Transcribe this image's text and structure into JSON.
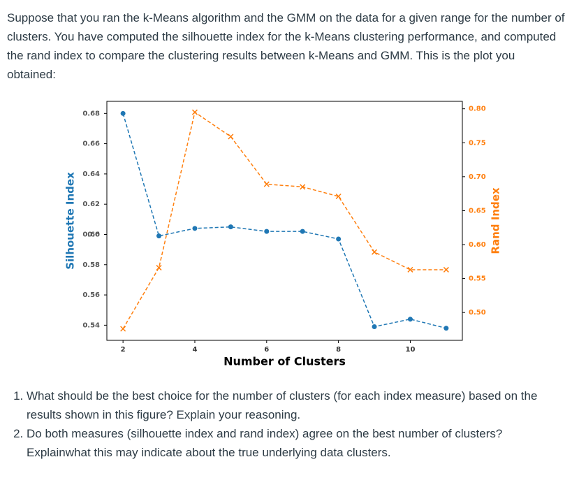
{
  "question": {
    "paragraph": "Suppose that you ran the k-Means algorithm and the GMM on the data for a given range for the number of clusters. You have computed the silhouette index for the k-Means clustering performance, and computed the rand index to compare the clustering results between k-Means and GMM. This is the plot you obtained:",
    "items": [
      "What should be the best choice for the number of clusters (for each index measure) based on the results shown in this figure? Explain your reasoning.",
      "Do both measures (silhouette index and rand index) agree on the best number of clusters? Explainwhat this may indicate about the true underlying data clusters."
    ]
  },
  "chart_data": {
    "type": "line",
    "xlabel": "Number of Clusters",
    "ylabel": "Silhouette Index",
    "y2label": "Rand Index",
    "x": [
      2,
      3,
      4,
      5,
      6,
      7,
      8,
      9,
      10,
      11
    ],
    "xlim": [
      1.55,
      11.45
    ],
    "xticks": [
      2,
      4,
      6,
      8,
      10
    ],
    "ylim": [
      0.53,
      0.688
    ],
    "yticks": [
      0.54,
      0.56,
      0.58,
      0.6,
      {
        "value": 0.6,
        "label": "0.60"
      },
      0.62,
      0.64,
      0.66,
      0.68
    ],
    "y2lim": [
      0.459,
      0.811
    ],
    "y2ticks": [
      {
        "value": 0.5,
        "label": "0.50"
      },
      0.55,
      {
        "value": 0.6,
        "label": "0.60"
      },
      0.65,
      {
        "value": 0.7,
        "label": "0.70"
      },
      0.75,
      {
        "value": 0.8,
        "label": "0.80"
      }
    ],
    "series": [
      {
        "color": "#1f77b4",
        "marker": "circle",
        "values": [
          0.68,
          0.599,
          0.604,
          0.605,
          0.602,
          0.602,
          0.597,
          0.539,
          0.544,
          0.538
        ]
      },
      {
        "color": "#ff7f0e",
        "marker": "x",
        "axis": "y2",
        "values": [
          0.476,
          0.566,
          0.795,
          0.759,
          0.689,
          0.685,
          0.671,
          0.589,
          0.563,
          0.563
        ]
      }
    ]
  }
}
